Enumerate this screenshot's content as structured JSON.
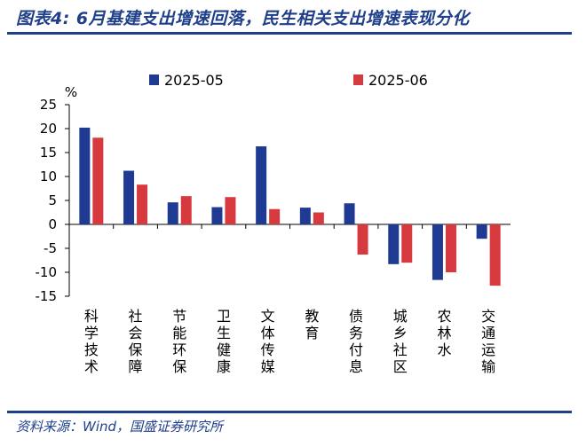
{
  "header": {
    "title": "图表4:  6月基建支出增速回落，民生相关支出增速表现分化"
  },
  "footer": {
    "source": "资料来源：Wind，国盛证券研究所"
  },
  "colors": {
    "series_2025_05": "#1f3a93",
    "series_2025_06": "#d63a3f",
    "accent": "#1f3f8a"
  },
  "chart_data": {
    "type": "bar",
    "ylabel": "%",
    "ylim": [
      -15,
      25
    ],
    "yticks": [
      25,
      20,
      15,
      10,
      5,
      0,
      -5,
      -10,
      -15
    ],
    "legend_position": "top",
    "grid": false,
    "categories": [
      "科学技术",
      "社会保障",
      "节能环保",
      "卫生健康",
      "文体传媒",
      "教育",
      "债务付息",
      "城乡社区",
      "农林水",
      "交通运输"
    ],
    "series": [
      {
        "name": "2025-05",
        "values": [
          20.2,
          11.2,
          4.6,
          3.6,
          16.3,
          3.5,
          4.4,
          -8.3,
          -11.6,
          -3.0
        ]
      },
      {
        "name": "2025-06",
        "values": [
          18.1,
          8.3,
          5.9,
          5.7,
          3.2,
          2.5,
          -6.3,
          -8.0,
          -10.0,
          -12.8
        ]
      }
    ]
  }
}
